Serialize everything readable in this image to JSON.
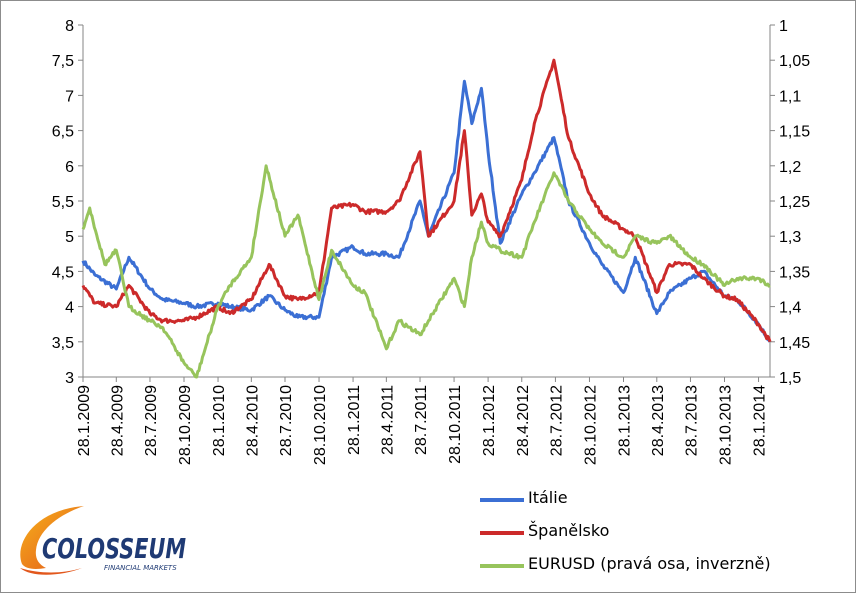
{
  "chart_data": {
    "type": "line",
    "title": "",
    "xlabel": "",
    "ylabel_left": "",
    "ylabel_right": "",
    "x_ticks": [
      "28.1.2009",
      "28.4.2009",
      "28.7.2009",
      "28.10.2009",
      "28.1.2010",
      "28.4.2010",
      "28.7.2010",
      "28.10.2010",
      "28.1.2011",
      "28.4.2011",
      "28.7.2011",
      "28.10.2011",
      "28.1.2012",
      "28.4.2012",
      "28.7.2012",
      "28.10.2012",
      "28.1.2013",
      "28.4.2013",
      "28.7.2013",
      "28.10.2013",
      "28.1.2014"
    ],
    "y_left": {
      "min": 3,
      "max": 8,
      "ticks": [
        "3",
        "3,5",
        "4",
        "4,5",
        "5",
        "5,5",
        "6",
        "6,5",
        "7",
        "7,5",
        "8"
      ]
    },
    "y_right": {
      "min": 1,
      "max": 1.5,
      "inverted": true,
      "ticks": [
        "1",
        "1,05",
        "1,1",
        "1,15",
        "1,2",
        "1,25",
        "1,3",
        "1,35",
        "1,4",
        "1,45",
        "1,5"
      ]
    },
    "grid": false,
    "legend_position": "bottom-right",
    "series": [
      {
        "name": "Itálie",
        "axis": "left",
        "color": "#3b6fd4",
        "points": [
          [
            "28.1.2009",
            4.65
          ],
          [
            "1.3.2009",
            4.45
          ],
          [
            "28.4.2009",
            4.25
          ],
          [
            "1.6.2009",
            4.7
          ],
          [
            "28.7.2009",
            4.25
          ],
          [
            "1.9.2009",
            4.1
          ],
          [
            "28.10.2009",
            4.05
          ],
          [
            "1.12.2009",
            4.0
          ],
          [
            "28.1.2010",
            4.05
          ],
          [
            "1.3.2010",
            4.0
          ],
          [
            "28.4.2010",
            3.95
          ],
          [
            "15.6.2010",
            4.15
          ],
          [
            "28.7.2010",
            3.95
          ],
          [
            "1.9.2010",
            3.85
          ],
          [
            "28.10.2010",
            3.85
          ],
          [
            "1.12.2010",
            4.7
          ],
          [
            "28.1.2011",
            4.85
          ],
          [
            "1.3.2011",
            4.75
          ],
          [
            "28.4.2011",
            4.75
          ],
          [
            "1.6.2011",
            4.7
          ],
          [
            "28.7.2011",
            5.5
          ],
          [
            "20.8.2011",
            5.0
          ],
          [
            "28.10.2011",
            5.9
          ],
          [
            "25.11.2011",
            7.2
          ],
          [
            "15.12.2011",
            6.6
          ],
          [
            "10.1.2012",
            7.1
          ],
          [
            "28.1.2012",
            6.2
          ],
          [
            "1.3.2012",
            4.9
          ],
          [
            "28.4.2012",
            5.6
          ],
          [
            "1.6.2012",
            5.9
          ],
          [
            "24.7.2012",
            6.4
          ],
          [
            "1.9.2012",
            5.5
          ],
          [
            "28.10.2012",
            4.9
          ],
          [
            "1.12.2012",
            4.6
          ],
          [
            "28.1.2013",
            4.2
          ],
          [
            "1.3.2013",
            4.7
          ],
          [
            "28.4.2013",
            3.9
          ],
          [
            "1.6.2013",
            4.2
          ],
          [
            "28.7.2013",
            4.4
          ],
          [
            "1.9.2013",
            4.5
          ],
          [
            "28.10.2013",
            4.15
          ],
          [
            "1.12.2013",
            4.1
          ],
          [
            "28.1.2014",
            3.75
          ],
          [
            "28.2.2014",
            3.5
          ]
        ]
      },
      {
        "name": "Španělsko",
        "axis": "left",
        "color": "#cc2a2a",
        "points": [
          [
            "28.1.2009",
            4.3
          ],
          [
            "1.3.2009",
            4.05
          ],
          [
            "28.4.2009",
            4.0
          ],
          [
            "1.6.2009",
            4.3
          ],
          [
            "28.7.2009",
            3.9
          ],
          [
            "1.9.2009",
            3.8
          ],
          [
            "28.10.2009",
            3.8
          ],
          [
            "1.12.2009",
            3.85
          ],
          [
            "28.1.2010",
            4.0
          ],
          [
            "1.3.2010",
            3.9
          ],
          [
            "28.4.2010",
            4.1
          ],
          [
            "15.6.2010",
            4.6
          ],
          [
            "28.7.2010",
            4.15
          ],
          [
            "1.9.2010",
            4.1
          ],
          [
            "28.10.2010",
            4.2
          ],
          [
            "1.12.2010",
            5.4
          ],
          [
            "28.1.2011",
            5.45
          ],
          [
            "1.3.2011",
            5.35
          ],
          [
            "28.4.2011",
            5.35
          ],
          [
            "1.6.2011",
            5.5
          ],
          [
            "28.7.2011",
            6.2
          ],
          [
            "20.8.2011",
            5.0
          ],
          [
            "28.10.2011",
            5.5
          ],
          [
            "25.11.2011",
            6.5
          ],
          [
            "15.12.2011",
            5.3
          ],
          [
            "10.1.2012",
            5.6
          ],
          [
            "28.1.2012",
            5.2
          ],
          [
            "1.3.2012",
            5.0
          ],
          [
            "28.4.2012",
            5.8
          ],
          [
            "1.6.2012",
            6.6
          ],
          [
            "24.7.2012",
            7.5
          ],
          [
            "1.9.2012",
            6.4
          ],
          [
            "28.10.2012",
            5.6
          ],
          [
            "1.12.2012",
            5.3
          ],
          [
            "28.1.2013",
            5.1
          ],
          [
            "1.3.2013",
            5.0
          ],
          [
            "28.4.2013",
            4.2
          ],
          [
            "1.6.2013",
            4.6
          ],
          [
            "28.7.2013",
            4.6
          ],
          [
            "1.9.2013",
            4.4
          ],
          [
            "28.10.2013",
            4.15
          ],
          [
            "1.12.2013",
            4.1
          ],
          [
            "28.1.2014",
            3.75
          ],
          [
            "28.2.2014",
            3.5
          ]
        ]
      },
      {
        "name": "EURUSD (pravá osa, inverzně)",
        "axis": "right",
        "color": "#97c45c",
        "points": [
          [
            "28.1.2009",
            1.29
          ],
          [
            "15.2.2009",
            1.26
          ],
          [
            "28.3.2009",
            1.34
          ],
          [
            "28.4.2009",
            1.32
          ],
          [
            "1.6.2009",
            1.4
          ],
          [
            "28.7.2009",
            1.42
          ],
          [
            "1.9.2009",
            1.43
          ],
          [
            "28.10.2009",
            1.48
          ],
          [
            "1.12.2009",
            1.5
          ],
          [
            "28.1.2010",
            1.4
          ],
          [
            "1.3.2010",
            1.37
          ],
          [
            "28.4.2010",
            1.33
          ],
          [
            "7.6.2010",
            1.2
          ],
          [
            "28.7.2010",
            1.3
          ],
          [
            "1.9.2010",
            1.27
          ],
          [
            "28.10.2010",
            1.39
          ],
          [
            "1.12.2010",
            1.32
          ],
          [
            "28.1.2011",
            1.37
          ],
          [
            "1.3.2011",
            1.38
          ],
          [
            "28.4.2011",
            1.46
          ],
          [
            "1.6.2011",
            1.42
          ],
          [
            "28.7.2011",
            1.44
          ],
          [
            "20.8.2011",
            1.42
          ],
          [
            "28.10.2011",
            1.36
          ],
          [
            "25.11.2011",
            1.4
          ],
          [
            "15.12.2011",
            1.33
          ],
          [
            "10.1.2012",
            1.28
          ],
          [
            "28.1.2012",
            1.31
          ],
          [
            "1.3.2012",
            1.32
          ],
          [
            "28.4.2012",
            1.33
          ],
          [
            "1.6.2012",
            1.28
          ],
          [
            "24.7.2012",
            1.21
          ],
          [
            "1.9.2012",
            1.25
          ],
          [
            "28.10.2012",
            1.29
          ],
          [
            "1.12.2012",
            1.31
          ],
          [
            "28.1.2013",
            1.33
          ],
          [
            "1.3.2013",
            1.3
          ],
          [
            "28.4.2013",
            1.31
          ],
          [
            "1.6.2013",
            1.3
          ],
          [
            "28.7.2013",
            1.33
          ],
          [
            "1.9.2013",
            1.34
          ],
          [
            "28.10.2013",
            1.37
          ],
          [
            "1.12.2013",
            1.36
          ],
          [
            "28.1.2014",
            1.36
          ],
          [
            "28.2.2014",
            1.37
          ]
        ]
      }
    ]
  },
  "legend": [
    {
      "label": "Itálie",
      "color": "#3b6fd4"
    },
    {
      "label": "Španělsko",
      "color": "#cc2a2a"
    },
    {
      "label": "EURUSD (pravá osa, inverzně)",
      "color": "#97c45c"
    }
  ],
  "logo": {
    "name": "COLOSSEUM",
    "tagline": "FINANCIAL MARKETS"
  }
}
